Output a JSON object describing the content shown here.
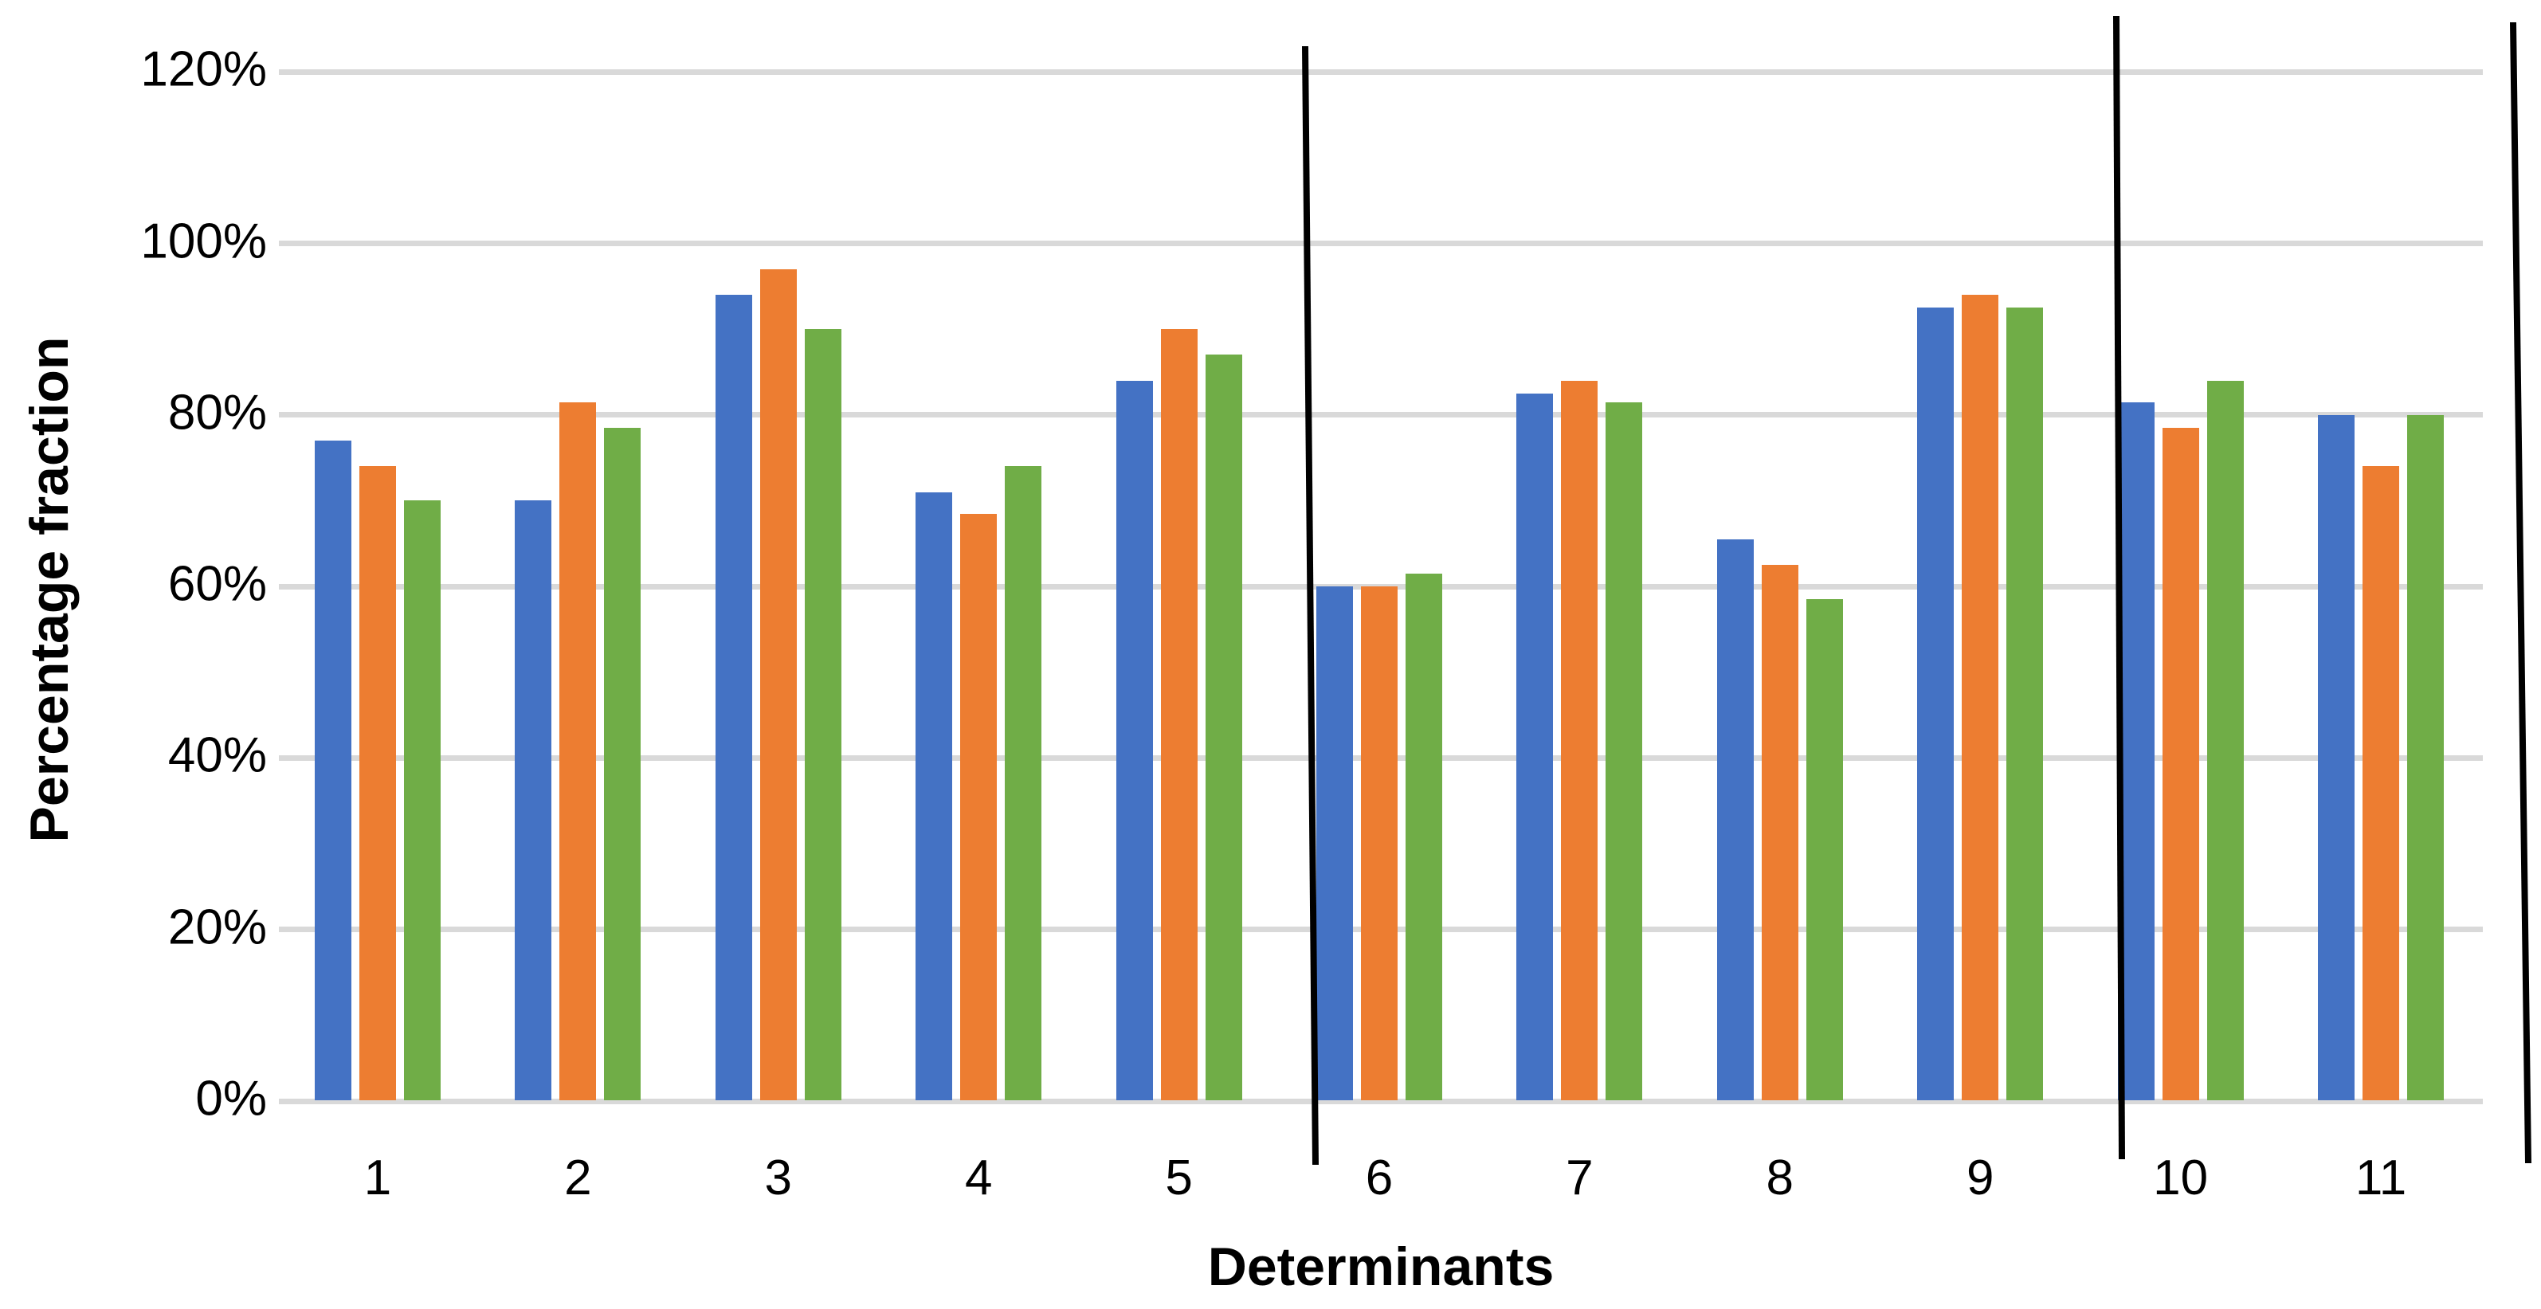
{
  "chart_data": {
    "type": "bar",
    "title": "",
    "xlabel": "Determinants",
    "ylabel": "Percentage fraction",
    "categories": [
      "1",
      "2",
      "3",
      "4",
      "5",
      "6",
      "7",
      "8",
      "9",
      "10",
      "11"
    ],
    "series": [
      {
        "color": "#4472C4",
        "values": [
          77,
          70,
          94,
          71,
          84,
          60,
          82.5,
          65.5,
          92.5,
          81.5,
          80
        ]
      },
      {
        "color": "#ED7D31",
        "values": [
          74,
          81.5,
          97,
          68.5,
          90,
          60,
          84,
          62.5,
          94,
          78.5,
          74
        ]
      },
      {
        "color": "#70AD47",
        "values": [
          70,
          78.5,
          90,
          74,
          87,
          61.5,
          81.5,
          58.5,
          92.5,
          84,
          80
        ]
      }
    ],
    "yticks": [
      "0%",
      "20%",
      "40%",
      "60%",
      "80%",
      "100%",
      "120%"
    ],
    "ytick_values": [
      0,
      20,
      40,
      60,
      80,
      100,
      120
    ],
    "ylim": [
      0,
      120
    ],
    "grid": true,
    "legend": "none",
    "gridline_color": "#d9d9d9",
    "annotation_lines": [
      {
        "x1": 1638,
        "y1": 58,
        "x2": 1651,
        "y2": 1462
      },
      {
        "x1": 2656,
        "y1": 20,
        "x2": 2663,
        "y2": 1455
      },
      {
        "x1": 3154,
        "y1": 28,
        "x2": 3173,
        "y2": 1460
      }
    ]
  }
}
